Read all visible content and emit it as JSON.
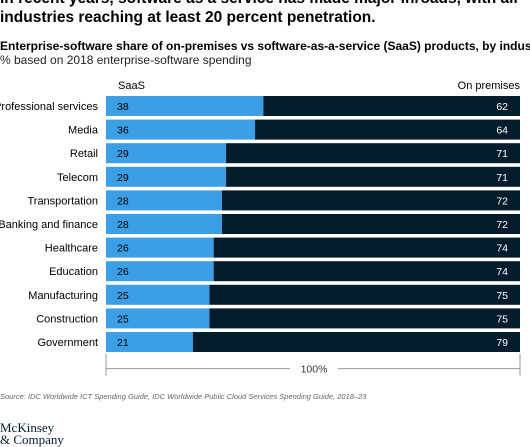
{
  "headline": {
    "line1": "In recent years, software as a service has made major inroads, with all",
    "line2": "industries reaching at least 20 percent penetration."
  },
  "chart_data": {
    "type": "bar",
    "orientation": "horizontal",
    "stacked": true,
    "title": "Enterprise-software share of on-premises vs software-as-a-service (SaaS) products, by industry,",
    "subtitle": "% based on 2018 enterprise-software spending",
    "categories": [
      "Professional services",
      "Media",
      "Retail",
      "Telecom",
      "Transportation",
      "Banking and finance",
      "Healthcare",
      "Education",
      "Manufacturing",
      "Construction",
      "Government"
    ],
    "series": [
      {
        "name": "SaaS",
        "color": "#3c9ee5",
        "values": [
          38,
          36,
          29,
          29,
          28,
          28,
          26,
          26,
          25,
          25,
          21
        ]
      },
      {
        "name": "On premises",
        "color": "#051c2c",
        "values": [
          62,
          64,
          71,
          71,
          72,
          72,
          74,
          74,
          75,
          75,
          79
        ]
      }
    ],
    "xlim": [
      0,
      100
    ],
    "total_label": "100%"
  },
  "source": "Source: IDC Worldwide ICT Spending Guide, IDC Worldwide Public Cloud Services Spending Guide, 2018–23",
  "logo": {
    "line1": "McKinsey",
    "line2": "& Company"
  }
}
